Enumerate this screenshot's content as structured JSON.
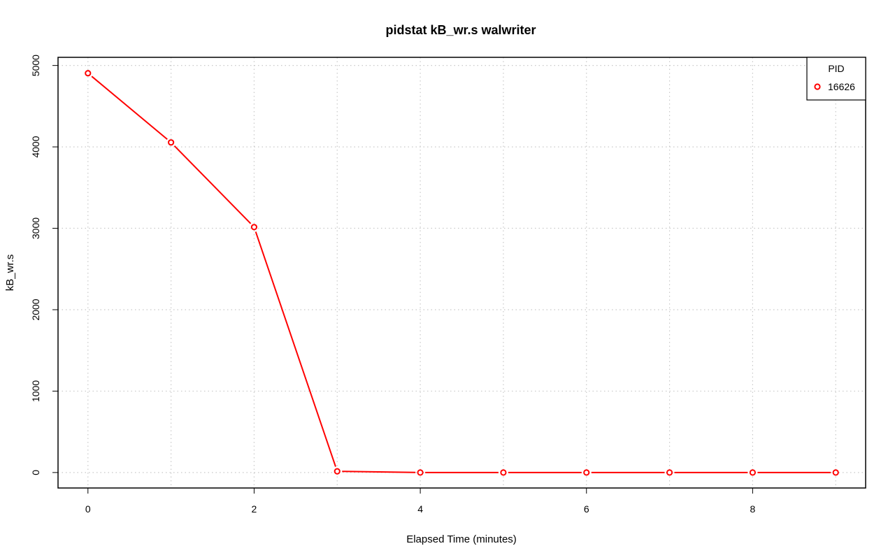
{
  "chart_data": {
    "type": "line",
    "title": "pidstat kB_wr.s walwriter",
    "xlabel": "Elapsed Time (minutes)",
    "ylabel": "kB_wr.s",
    "xlim": [
      -0.36,
      9.36
    ],
    "ylim": [
      -190,
      5100
    ],
    "x_ticks": [
      0,
      2,
      4,
      6,
      8
    ],
    "y_ticks": [
      0,
      1000,
      2000,
      3000,
      4000,
      5000
    ],
    "grid": true,
    "legend": {
      "title": "PID",
      "position": "top-right"
    },
    "series": [
      {
        "name": "16626",
        "color": "#ff0000",
        "x": [
          0,
          1,
          2,
          3,
          4,
          5,
          6,
          7,
          8,
          9
        ],
        "values": [
          4905,
          4055,
          3015,
          15,
          0,
          0,
          0,
          0,
          0,
          0
        ]
      }
    ]
  }
}
